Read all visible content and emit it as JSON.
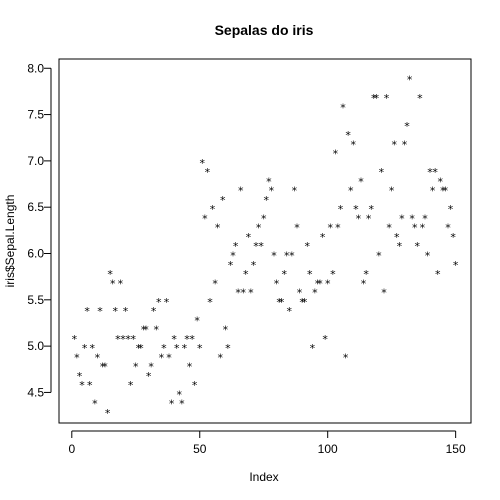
{
  "chart_data": {
    "type": "scatter",
    "title": "Sepalas do iris",
    "xlabel": "Index",
    "ylabel": "iris$Sepal.Length",
    "marker": "*",
    "xlim": [
      -5,
      156
    ],
    "ylim": [
      4.17,
      8.1
    ],
    "xticks": [
      0,
      50,
      100,
      150
    ],
    "yticks": [
      4.5,
      5.0,
      5.5,
      6.0,
      6.5,
      7.0,
      7.5,
      8.0
    ],
    "ytick_labels": [
      "4.5",
      "5.0",
      "5.5",
      "6.0",
      "6.5",
      "7.0",
      "7.5",
      "8.0"
    ],
    "grid": false,
    "x": [
      1,
      2,
      3,
      4,
      5,
      6,
      7,
      8,
      9,
      10,
      11,
      12,
      13,
      14,
      15,
      16,
      17,
      18,
      19,
      20,
      21,
      22,
      23,
      24,
      25,
      26,
      27,
      28,
      29,
      30,
      31,
      32,
      33,
      34,
      35,
      36,
      37,
      38,
      39,
      40,
      41,
      42,
      43,
      44,
      45,
      46,
      47,
      48,
      49,
      50,
      51,
      52,
      53,
      54,
      55,
      56,
      57,
      58,
      59,
      60,
      61,
      62,
      63,
      64,
      65,
      66,
      67,
      68,
      69,
      70,
      71,
      72,
      73,
      74,
      75,
      76,
      77,
      78,
      79,
      80,
      81,
      82,
      83,
      84,
      85,
      86,
      87,
      88,
      89,
      90,
      91,
      92,
      93,
      94,
      95,
      96,
      97,
      98,
      99,
      100,
      101,
      102,
      103,
      104,
      105,
      106,
      107,
      108,
      109,
      110,
      111,
      112,
      113,
      114,
      115,
      116,
      117,
      118,
      119,
      120,
      121,
      122,
      123,
      124,
      125,
      126,
      127,
      128,
      129,
      130,
      131,
      132,
      133,
      134,
      135,
      136,
      137,
      138,
      139,
      140,
      141,
      142,
      143,
      144,
      145,
      146,
      147,
      148,
      149,
      150
    ],
    "y": [
      5.1,
      4.9,
      4.7,
      4.6,
      5.0,
      5.4,
      4.6,
      5.0,
      4.4,
      4.9,
      5.4,
      4.8,
      4.8,
      4.3,
      5.8,
      5.7,
      5.4,
      5.1,
      5.7,
      5.1,
      5.4,
      5.1,
      4.6,
      5.1,
      4.8,
      5.0,
      5.0,
      5.2,
      5.2,
      4.7,
      4.8,
      5.4,
      5.2,
      5.5,
      4.9,
      5.0,
      5.5,
      4.9,
      4.4,
      5.1,
      5.0,
      4.5,
      4.4,
      5.0,
      5.1,
      4.8,
      5.1,
      4.6,
      5.3,
      5.0,
      7.0,
      6.4,
      6.9,
      5.5,
      6.5,
      5.7,
      6.3,
      4.9,
      6.6,
      5.2,
      5.0,
      5.9,
      6.0,
      6.1,
      5.6,
      6.7,
      5.6,
      5.8,
      6.2,
      5.6,
      5.9,
      6.1,
      6.3,
      6.1,
      6.4,
      6.6,
      6.8,
      6.7,
      6.0,
      5.7,
      5.5,
      5.5,
      5.8,
      6.0,
      5.4,
      6.0,
      6.7,
      6.3,
      5.6,
      5.5,
      5.5,
      6.1,
      5.8,
      5.0,
      5.6,
      5.7,
      5.7,
      6.2,
      5.1,
      5.7,
      6.3,
      5.8,
      7.1,
      6.3,
      6.5,
      7.6,
      4.9,
      7.3,
      6.7,
      7.2,
      6.5,
      6.4,
      6.8,
      5.7,
      5.8,
      6.4,
      6.5,
      7.7,
      7.7,
      6.0,
      6.9,
      5.6,
      7.7,
      6.3,
      6.7,
      7.2,
      6.2,
      6.1,
      6.4,
      7.2,
      7.4,
      7.9,
      6.4,
      6.3,
      6.1,
      7.7,
      6.3,
      6.4,
      6.0,
      6.9,
      6.7,
      6.9,
      5.8,
      6.8,
      6.7,
      6.7,
      6.3,
      6.5,
      6.2,
      5.9
    ]
  }
}
